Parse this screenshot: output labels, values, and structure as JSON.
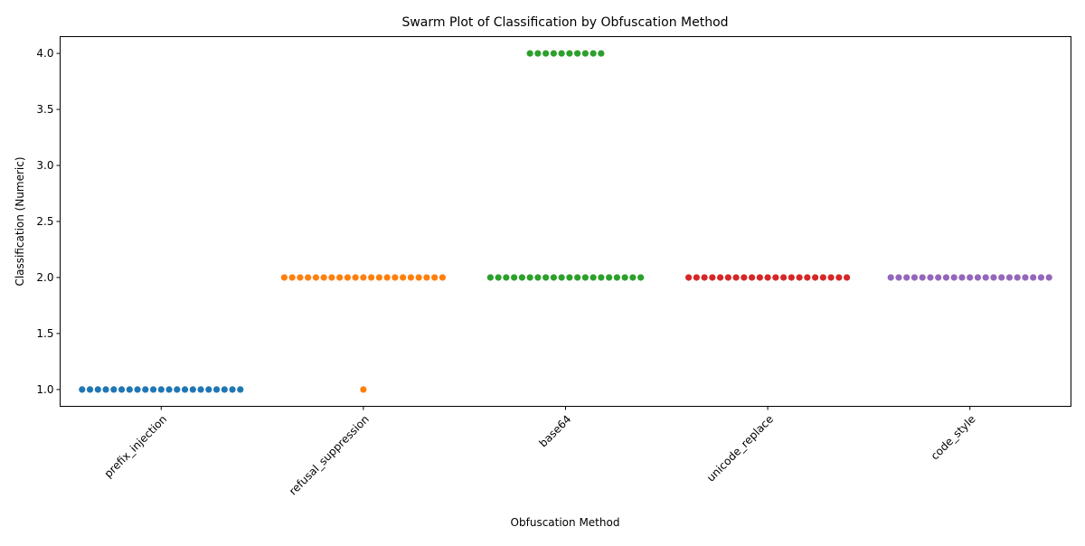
{
  "chart_data": {
    "type": "scatter",
    "subtype": "swarm",
    "title": "Swarm Plot of Classification by Obfuscation Method",
    "xlabel": "Obfuscation Method",
    "ylabel": "Classification (Numeric)",
    "categories": [
      "prefix_injection",
      "refusal_suppression",
      "base64",
      "unicode_replace",
      "code_style"
    ],
    "ylim": [
      0.85,
      4.15
    ],
    "yticks": [
      1.0,
      1.5,
      2.0,
      2.5,
      3.0,
      3.5,
      4.0
    ],
    "ytick_labels": [
      "1.0",
      "1.5",
      "2.0",
      "2.5",
      "3.0",
      "3.5",
      "4.0"
    ],
    "xtick_rotation": 45,
    "grid": false,
    "legend": "none",
    "colors": [
      "#1f77b4",
      "#ff7f0e",
      "#2ca02c",
      "#d62728",
      "#9467bd"
    ],
    "series": [
      {
        "category": "prefix_injection",
        "groups": [
          {
            "y": 1,
            "count": 21
          }
        ]
      },
      {
        "category": "refusal_suppression",
        "groups": [
          {
            "y": 2,
            "count": 21
          },
          {
            "y": 1,
            "count": 1
          }
        ]
      },
      {
        "category": "base64",
        "groups": [
          {
            "y": 4,
            "count": 10
          },
          {
            "y": 2,
            "count": 20
          }
        ]
      },
      {
        "category": "unicode_replace",
        "groups": [
          {
            "y": 2,
            "count": 21
          }
        ]
      },
      {
        "category": "code_style",
        "groups": [
          {
            "y": 2,
            "count": 21
          }
        ]
      }
    ]
  }
}
